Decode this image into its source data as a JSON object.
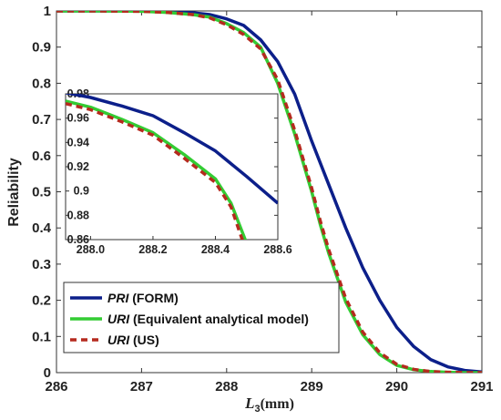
{
  "chart_data": {
    "type": "line",
    "ylabel": "Reliability",
    "xlabel_var": "L",
    "xlabel_sub": "3",
    "xlabel_unit": "(mm)",
    "xlim": [
      286,
      291
    ],
    "ylim": [
      0,
      1
    ],
    "xticks": [
      286,
      287,
      288,
      289,
      290,
      291
    ],
    "yticks": [
      0,
      0.1,
      0.2,
      0.3,
      0.4,
      0.5,
      0.6,
      0.7,
      0.8,
      0.9,
      1
    ],
    "ytick_labels": [
      "0",
      "0.1",
      "0.2",
      "0.3",
      "0.4",
      "0.5",
      "0.6",
      "0.7",
      "0.8",
      "0.9",
      "1"
    ],
    "legend_position": "bottom-left",
    "legend": [
      {
        "prefix": "PRI",
        "suffix": " (FORM)",
        "series": 0
      },
      {
        "prefix": "URI",
        "suffix": " (Equivalent analytical model)",
        "series": 1
      },
      {
        "prefix": "URI",
        "suffix": " (US)",
        "series": 2
      }
    ],
    "series": [
      {
        "color": "#0c1f8a",
        "style": "solid",
        "width": 3.5,
        "x": [
          286,
          286.5,
          287,
          287.3,
          287.6,
          287.8,
          288.0,
          288.2,
          288.4,
          288.6,
          288.8,
          289.0,
          289.2,
          289.4,
          289.6,
          289.8,
          290.0,
          290.2,
          290.4,
          290.6,
          290.8,
          291.0
        ],
        "y": [
          1.0,
          1.0,
          1.0,
          0.999,
          0.995,
          0.99,
          0.978,
          0.96,
          0.92,
          0.86,
          0.77,
          0.64,
          0.52,
          0.4,
          0.29,
          0.2,
          0.125,
          0.072,
          0.036,
          0.016,
          0.006,
          0.002
        ]
      },
      {
        "color": "#33cc33",
        "style": "solid",
        "width": 3.5,
        "x": [
          286,
          286.5,
          287,
          287.3,
          287.6,
          287.8,
          288.0,
          288.2,
          288.4,
          288.6,
          288.8,
          289.0,
          289.1,
          289.2,
          289.4,
          289.6,
          289.8,
          290.0,
          290.2,
          290.4,
          290.6,
          290.8,
          291.0
        ],
        "y": [
          1.0,
          1.0,
          0.999,
          0.996,
          0.99,
          0.983,
          0.965,
          0.94,
          0.9,
          0.8,
          0.66,
          0.5,
          0.41,
          0.33,
          0.195,
          0.105,
          0.05,
          0.02,
          0.008,
          0.003,
          0.001,
          0.0,
          0.0
        ]
      },
      {
        "color": "#b52a1e",
        "style": "dashed",
        "width": 3.5,
        "x": [
          286,
          286.5,
          287,
          287.3,
          287.6,
          287.8,
          288.0,
          288.2,
          288.4,
          288.6,
          288.8,
          289.0,
          289.1,
          289.2,
          289.4,
          289.6,
          289.8,
          290.0,
          290.2,
          290.4,
          290.6,
          290.8,
          291.0
        ],
        "y": [
          1.0,
          1.0,
          0.999,
          0.996,
          0.99,
          0.981,
          0.962,
          0.935,
          0.895,
          0.81,
          0.67,
          0.51,
          0.42,
          0.34,
          0.205,
          0.112,
          0.055,
          0.023,
          0.009,
          0.003,
          0.001,
          0.0,
          0.0
        ]
      }
    ],
    "inset": {
      "xlim": [
        287.92,
        288.6
      ],
      "ylim": [
        0.86,
        0.98
      ],
      "xticks": [
        288.0,
        288.2,
        288.4,
        288.6
      ],
      "xtick_labels": [
        "288.0",
        "288.2",
        "288.4",
        "288.6"
      ],
      "yticks": [
        0.86,
        0.88,
        0.9,
        0.92,
        0.94,
        0.96,
        0.98
      ],
      "ytick_labels": [
        "0.86",
        "0.88",
        "0.9",
        "0.92",
        "0.94",
        "0.96",
        "0.98"
      ],
      "series": [
        {
          "x": [
            287.92,
            288.0,
            288.1,
            288.2,
            288.3,
            288.4,
            288.5,
            288.6
          ],
          "y": [
            0.981,
            0.977,
            0.97,
            0.962,
            0.948,
            0.933,
            0.912,
            0.89
          ]
        },
        {
          "x": [
            287.92,
            288.0,
            288.1,
            288.2,
            288.3,
            288.4,
            288.45,
            288.5
          ],
          "y": [
            0.974,
            0.969,
            0.959,
            0.948,
            0.93,
            0.91,
            0.89,
            0.857
          ]
        },
        {
          "x": [
            287.92,
            288.0,
            288.1,
            288.2,
            288.3,
            288.4,
            288.45,
            288.49
          ],
          "y": [
            0.972,
            0.967,
            0.957,
            0.946,
            0.927,
            0.907,
            0.887,
            0.857
          ]
        }
      ]
    }
  }
}
